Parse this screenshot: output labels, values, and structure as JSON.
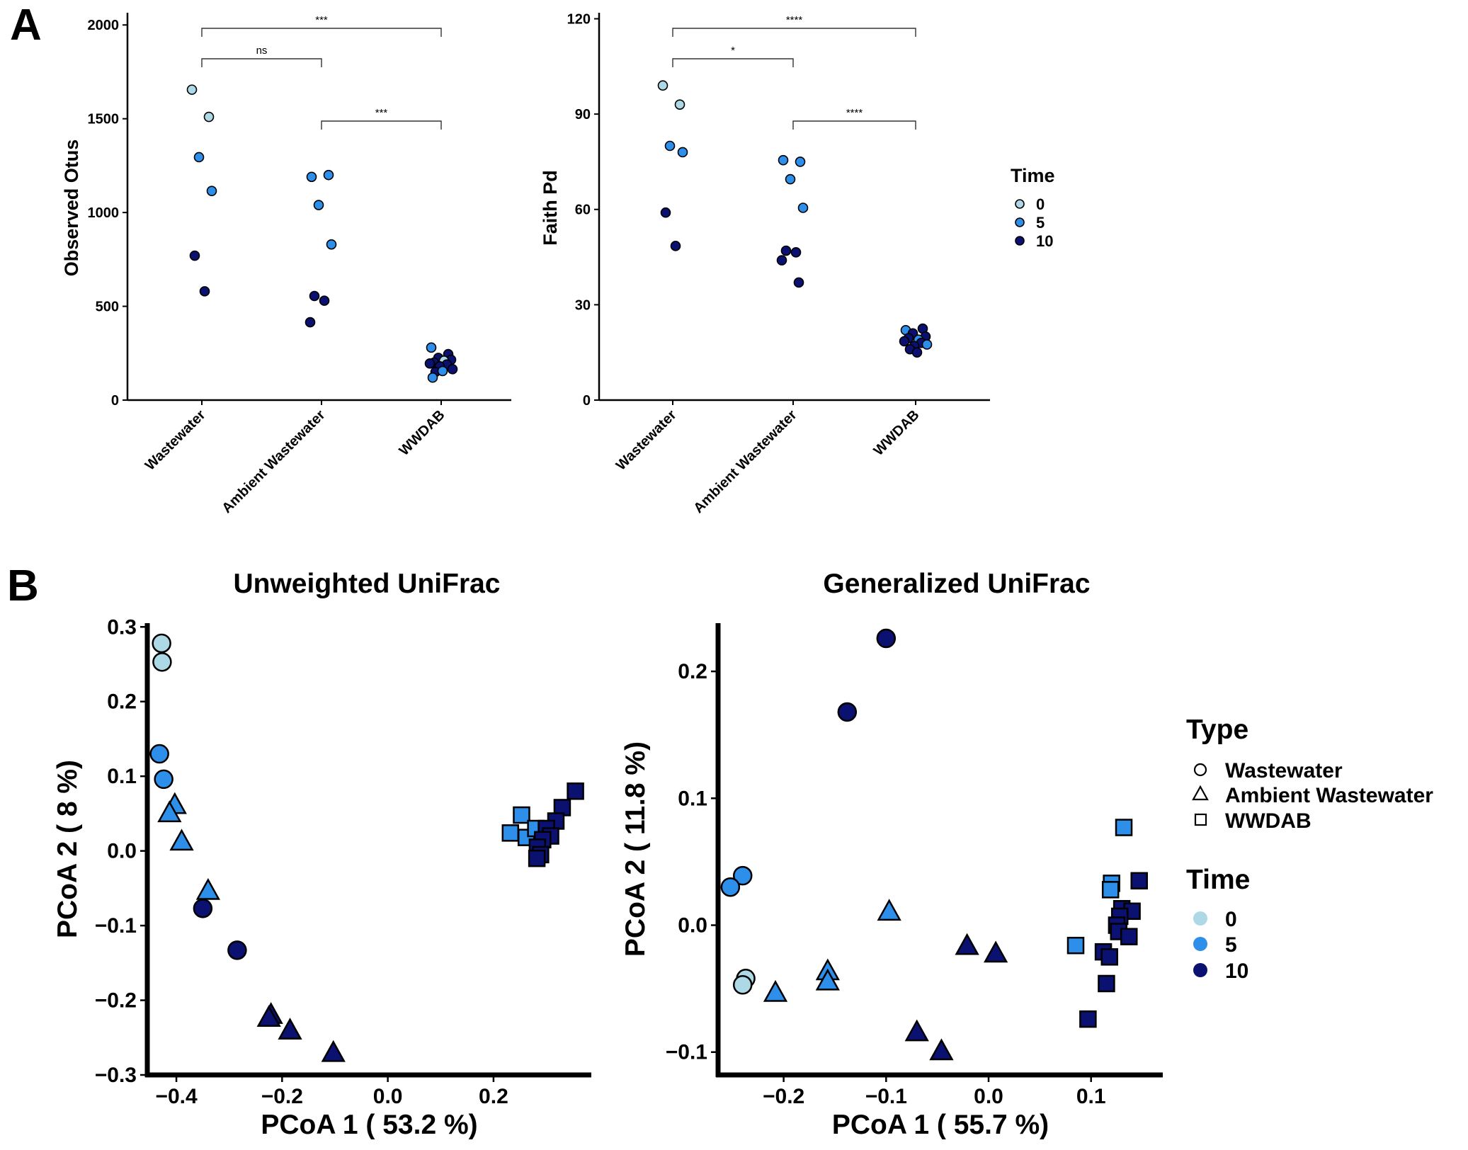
{
  "figure": {
    "panel_labels": [
      "A",
      "B"
    ],
    "time_colors": {
      "0": "#add8e6",
      "5": "#2e8fea",
      "10": "#0b1170"
    }
  },
  "panel_a": {
    "categories": [
      "Wastewater",
      "Ambient Wastewater",
      "WWDAB"
    ],
    "legend": {
      "title": "Time",
      "items": [
        "0",
        "5",
        "10"
      ]
    }
  },
  "panel_b": {
    "legend_type": {
      "title": "Type",
      "items": [
        "Wastewater",
        "Ambient Wastewater",
        "WWDAB"
      ]
    },
    "legend_time": {
      "title": "Time",
      "items": [
        "0",
        "5",
        "10"
      ]
    }
  },
  "chart_data": [
    {
      "type": "scatter",
      "panel": "A-left",
      "title": "",
      "xlabel": "",
      "ylabel": "Observed Otus",
      "categories": [
        "Wastewater",
        "Ambient Wastewater",
        "WWDAB"
      ],
      "ylim": [
        0,
        2050
      ],
      "yticks": [
        0,
        500,
        1000,
        1500,
        2000
      ],
      "grid": false,
      "points": [
        {
          "group": "Wastewater",
          "time": 0,
          "y": 1655
        },
        {
          "group": "Wastewater",
          "time": 0,
          "y": 1510
        },
        {
          "group": "Wastewater",
          "time": 5,
          "y": 1295
        },
        {
          "group": "Wastewater",
          "time": 5,
          "y": 1115
        },
        {
          "group": "Wastewater",
          "time": 10,
          "y": 770
        },
        {
          "group": "Wastewater",
          "time": 10,
          "y": 580
        },
        {
          "group": "Ambient Wastewater",
          "time": 5,
          "y": 1190
        },
        {
          "group": "Ambient Wastewater",
          "time": 5,
          "y": 1200
        },
        {
          "group": "Ambient Wastewater",
          "time": 5,
          "y": 1040
        },
        {
          "group": "Ambient Wastewater",
          "time": 5,
          "y": 830
        },
        {
          "group": "Ambient Wastewater",
          "time": 10,
          "y": 555
        },
        {
          "group": "Ambient Wastewater",
          "time": 10,
          "y": 530
        },
        {
          "group": "Ambient Wastewater",
          "time": 10,
          "y": 415
        },
        {
          "group": "WWDAB",
          "time": 5,
          "y": 280
        },
        {
          "group": "WWDAB",
          "time": 10,
          "y": 245
        },
        {
          "group": "WWDAB",
          "time": 10,
          "y": 225
        },
        {
          "group": "WWDAB",
          "time": 10,
          "y": 215
        },
        {
          "group": "WWDAB",
          "time": 10,
          "y": 200
        },
        {
          "group": "WWDAB",
          "time": 0,
          "y": 210
        },
        {
          "group": "WWDAB",
          "time": 10,
          "y": 195
        },
        {
          "group": "WWDAB",
          "time": 10,
          "y": 190
        },
        {
          "group": "WWDAB",
          "time": 10,
          "y": 180
        },
        {
          "group": "WWDAB",
          "time": 10,
          "y": 165
        },
        {
          "group": "WWDAB",
          "time": 10,
          "y": 150
        },
        {
          "group": "WWDAB",
          "time": 5,
          "y": 155
        },
        {
          "group": "WWDAB",
          "time": 5,
          "y": 120
        }
      ],
      "comparisons": [
        {
          "from": "Wastewater",
          "to": "WWDAB",
          "label": "***"
        },
        {
          "from": "Wastewater",
          "to": "Ambient Wastewater",
          "label": "ns"
        },
        {
          "from": "Ambient Wastewater",
          "to": "WWDAB",
          "label": "***"
        }
      ]
    },
    {
      "type": "scatter",
      "panel": "A-right",
      "title": "",
      "xlabel": "",
      "ylabel": "Faith Pd",
      "categories": [
        "Wastewater",
        "Ambient Wastewater",
        "WWDAB"
      ],
      "ylim": [
        0,
        121
      ],
      "yticks": [
        0,
        30,
        60,
        90,
        120
      ],
      "grid": false,
      "points": [
        {
          "group": "Wastewater",
          "time": 0,
          "y": 99
        },
        {
          "group": "Wastewater",
          "time": 0,
          "y": 93
        },
        {
          "group": "Wastewater",
          "time": 5,
          "y": 80
        },
        {
          "group": "Wastewater",
          "time": 5,
          "y": 78
        },
        {
          "group": "Wastewater",
          "time": 10,
          "y": 59
        },
        {
          "group": "Wastewater",
          "time": 10,
          "y": 48.5
        },
        {
          "group": "Ambient Wastewater",
          "time": 5,
          "y": 75.5
        },
        {
          "group": "Ambient Wastewater",
          "time": 5,
          "y": 75
        },
        {
          "group": "Ambient Wastewater",
          "time": 5,
          "y": 69.5
        },
        {
          "group": "Ambient Wastewater",
          "time": 5,
          "y": 60.5
        },
        {
          "group": "Ambient Wastewater",
          "time": 10,
          "y": 47
        },
        {
          "group": "Ambient Wastewater",
          "time": 10,
          "y": 46.5
        },
        {
          "group": "Ambient Wastewater",
          "time": 10,
          "y": 44
        },
        {
          "group": "Ambient Wastewater",
          "time": 10,
          "y": 37
        },
        {
          "group": "WWDAB",
          "time": 5,
          "y": 22
        },
        {
          "group": "WWDAB",
          "time": 10,
          "y": 22.5
        },
        {
          "group": "WWDAB",
          "time": 10,
          "y": 21
        },
        {
          "group": "WWDAB",
          "time": 10,
          "y": 20
        },
        {
          "group": "WWDAB",
          "time": 10,
          "y": 19.5
        },
        {
          "group": "WWDAB",
          "time": 5,
          "y": 19
        },
        {
          "group": "WWDAB",
          "time": 10,
          "y": 18.5
        },
        {
          "group": "WWDAB",
          "time": 10,
          "y": 18
        },
        {
          "group": "WWDAB",
          "time": 10,
          "y": 17
        },
        {
          "group": "WWDAB",
          "time": 5,
          "y": 17.5
        },
        {
          "group": "WWDAB",
          "time": 10,
          "y": 16
        },
        {
          "group": "WWDAB",
          "time": 10,
          "y": 15
        }
      ],
      "comparisons": [
        {
          "from": "Wastewater",
          "to": "WWDAB",
          "label": "****"
        },
        {
          "from": "Wastewater",
          "to": "Ambient Wastewater",
          "label": "*"
        },
        {
          "from": "Ambient Wastewater",
          "to": "WWDAB",
          "label": "****"
        }
      ]
    },
    {
      "type": "scatter",
      "panel": "B-left",
      "title": "Unweighted UniFrac",
      "xlabel": "PCoA 1 ( 53.2 %)",
      "ylabel": "PCoA 2 ( 8 %)",
      "xlim": [
        -0.455,
        0.385
      ],
      "ylim": [
        -0.3,
        0.305
      ],
      "xticks": [
        -0.4,
        -0.2,
        0.0,
        0.2
      ],
      "xtick_labels": [
        "−0.4",
        "−0.2",
        "0.0",
        "0.2"
      ],
      "yticks": [
        -0.3,
        -0.2,
        -0.1,
        0.0,
        0.1,
        0.2,
        0.3
      ],
      "ytick_labels": [
        "−0.3",
        "−0.2",
        "−0.1",
        "0.0",
        "0.1",
        "0.2",
        "0.3"
      ],
      "grid": false,
      "points": [
        {
          "x": -0.428,
          "y": 0.278,
          "shape": "Wastewater",
          "time": 0
        },
        {
          "x": -0.427,
          "y": 0.253,
          "shape": "Wastewater",
          "time": 0
        },
        {
          "x": -0.432,
          "y": 0.13,
          "shape": "Wastewater",
          "time": 5
        },
        {
          "x": -0.424,
          "y": 0.096,
          "shape": "Wastewater",
          "time": 5
        },
        {
          "x": -0.35,
          "y": -0.077,
          "shape": "Wastewater",
          "time": 10
        },
        {
          "x": -0.285,
          "y": -0.133,
          "shape": "Wastewater",
          "time": 10
        },
        {
          "x": -0.403,
          "y": 0.062,
          "shape": "Ambient Wastewater",
          "time": 5
        },
        {
          "x": -0.413,
          "y": 0.051,
          "shape": "Ambient Wastewater",
          "time": 5
        },
        {
          "x": -0.39,
          "y": 0.013,
          "shape": "Ambient Wastewater",
          "time": 5
        },
        {
          "x": -0.34,
          "y": -0.053,
          "shape": "Ambient Wastewater",
          "time": 5
        },
        {
          "x": -0.221,
          "y": -0.219,
          "shape": "Ambient Wastewater",
          "time": 10
        },
        {
          "x": -0.225,
          "y": -0.223,
          "shape": "Ambient Wastewater",
          "time": 10
        },
        {
          "x": -0.185,
          "y": -0.24,
          "shape": "Ambient Wastewater",
          "time": 10
        },
        {
          "x": -0.103,
          "y": -0.27,
          "shape": "Ambient Wastewater",
          "time": 10
        },
        {
          "x": 0.253,
          "y": 0.048,
          "shape": "WWDAB",
          "time": 5
        },
        {
          "x": 0.232,
          "y": 0.024,
          "shape": "WWDAB",
          "time": 5
        },
        {
          "x": 0.262,
          "y": 0.018,
          "shape": "WWDAB",
          "time": 5
        },
        {
          "x": 0.28,
          "y": 0.03,
          "shape": "WWDAB",
          "time": 5
        },
        {
          "x": 0.355,
          "y": 0.08,
          "shape": "WWDAB",
          "time": 10
        },
        {
          "x": 0.33,
          "y": 0.058,
          "shape": "WWDAB",
          "time": 10
        },
        {
          "x": 0.318,
          "y": 0.04,
          "shape": "WWDAB",
          "time": 10
        },
        {
          "x": 0.3,
          "y": 0.03,
          "shape": "WWDAB",
          "time": 10
        },
        {
          "x": 0.308,
          "y": 0.02,
          "shape": "WWDAB",
          "time": 10
        },
        {
          "x": 0.293,
          "y": 0.015,
          "shape": "WWDAB",
          "time": 10
        },
        {
          "x": 0.283,
          "y": 0.005,
          "shape": "WWDAB",
          "time": 10
        },
        {
          "x": 0.289,
          "y": -0.005,
          "shape": "WWDAB",
          "time": 10
        },
        {
          "x": 0.282,
          "y": -0.01,
          "shape": "WWDAB",
          "time": 10
        }
      ]
    },
    {
      "type": "scatter",
      "panel": "B-right",
      "title": "Generalized UniFrac",
      "xlabel": "PCoA 1 ( 55.7 %)",
      "ylabel": "PCoA 2 ( 11.8 %)",
      "xlim": [
        -0.264,
        0.17
      ],
      "ylim": [
        -0.118,
        0.238
      ],
      "xticks": [
        -0.2,
        -0.1,
        0.0,
        0.1
      ],
      "xtick_labels": [
        "−0.2",
        "−0.1",
        "0.0",
        "0.1"
      ],
      "yticks": [
        -0.1,
        0.0,
        0.1,
        0.2
      ],
      "ytick_labels": [
        "−0.1",
        "0.0",
        "0.1",
        "0.2"
      ],
      "grid": false,
      "points": [
        {
          "x": -0.1,
          "y": 0.226,
          "shape": "Wastewater",
          "time": 10
        },
        {
          "x": -0.138,
          "y": 0.168,
          "shape": "Wastewater",
          "time": 10
        },
        {
          "x": -0.24,
          "y": 0.039,
          "shape": "Wastewater",
          "time": 5
        },
        {
          "x": -0.252,
          "y": 0.03,
          "shape": "Wastewater",
          "time": 5
        },
        {
          "x": -0.237,
          "y": -0.042,
          "shape": "Wastewater",
          "time": 0
        },
        {
          "x": -0.24,
          "y": -0.047,
          "shape": "Wastewater",
          "time": 0
        },
        {
          "x": -0.097,
          "y": 0.011,
          "shape": "Ambient Wastewater",
          "time": 5
        },
        {
          "x": -0.157,
          "y": -0.036,
          "shape": "Ambient Wastewater",
          "time": 5
        },
        {
          "x": -0.157,
          "y": -0.044,
          "shape": "Ambient Wastewater",
          "time": 5
        },
        {
          "x": -0.208,
          "y": -0.053,
          "shape": "Ambient Wastewater",
          "time": 5
        },
        {
          "x": -0.021,
          "y": -0.016,
          "shape": "Ambient Wastewater",
          "time": 10
        },
        {
          "x": 0.007,
          "y": -0.022,
          "shape": "Ambient Wastewater",
          "time": 10
        },
        {
          "x": -0.07,
          "y": -0.084,
          "shape": "Ambient Wastewater",
          "time": 10
        },
        {
          "x": -0.046,
          "y": -0.099,
          "shape": "Ambient Wastewater",
          "time": 10
        },
        {
          "x": 0.132,
          "y": 0.077,
          "shape": "WWDAB",
          "time": 5
        },
        {
          "x": 0.12,
          "y": 0.033,
          "shape": "WWDAB",
          "time": 5
        },
        {
          "x": 0.119,
          "y": 0.028,
          "shape": "WWDAB",
          "time": 5
        },
        {
          "x": 0.085,
          "y": -0.016,
          "shape": "WWDAB",
          "time": 5
        },
        {
          "x": 0.147,
          "y": 0.035,
          "shape": "WWDAB",
          "time": 10
        },
        {
          "x": 0.13,
          "y": 0.013,
          "shape": "WWDAB",
          "time": 10
        },
        {
          "x": 0.14,
          "y": 0.011,
          "shape": "WWDAB",
          "time": 10
        },
        {
          "x": 0.128,
          "y": 0.007,
          "shape": "WWDAB",
          "time": 10
        },
        {
          "x": 0.125,
          "y": 0.0,
          "shape": "WWDAB",
          "time": 10
        },
        {
          "x": 0.127,
          "y": -0.005,
          "shape": "WWDAB",
          "time": 10
        },
        {
          "x": 0.137,
          "y": -0.009,
          "shape": "WWDAB",
          "time": 10
        },
        {
          "x": 0.112,
          "y": -0.021,
          "shape": "WWDAB",
          "time": 10
        },
        {
          "x": 0.118,
          "y": -0.025,
          "shape": "WWDAB",
          "time": 10
        },
        {
          "x": 0.115,
          "y": -0.046,
          "shape": "WWDAB",
          "time": 10
        },
        {
          "x": 0.097,
          "y": -0.074,
          "shape": "WWDAB",
          "time": 10
        }
      ]
    }
  ]
}
